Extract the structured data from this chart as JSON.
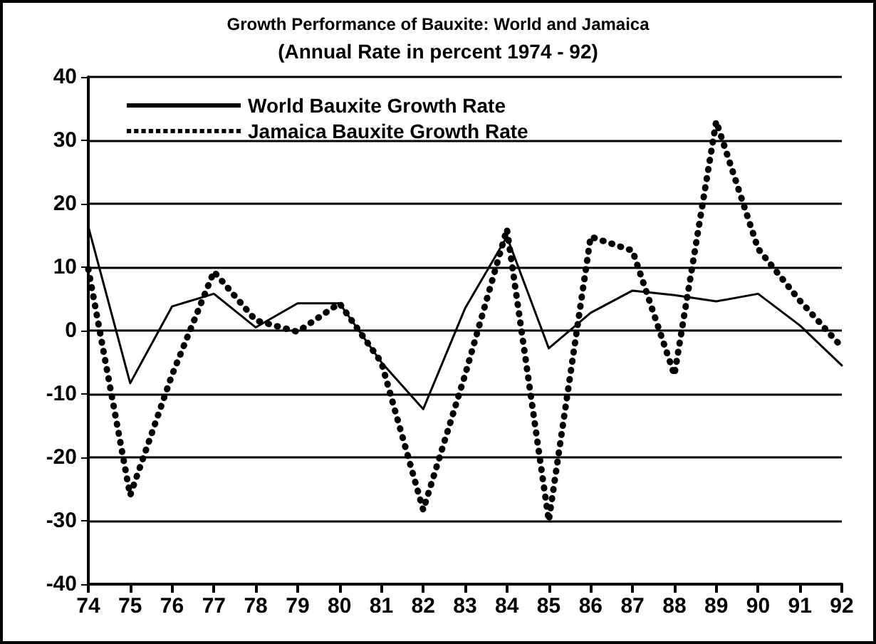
{
  "chart_data": {
    "type": "line",
    "title": "Growth Performance of Bauxite: World and Jamaica",
    "subtitle": "(Annual Rate in percent 1974 - 92)",
    "categories": [
      "74",
      "75",
      "76",
      "77",
      "78",
      "79",
      "80",
      "81",
      "82",
      "83",
      "84",
      "85",
      "86",
      "87",
      "88",
      "89",
      "90",
      "91",
      "92"
    ],
    "series": [
      {
        "name": "World Bauxite Growth Rate",
        "color": "#000000",
        "line_style": "solid",
        "values": [
          16.4,
          -8.3,
          3.8,
          5.8,
          0.5,
          4.3,
          4.3,
          -5,
          -12.4,
          3.5,
          14.8,
          -2.8,
          2.8,
          6.3,
          5.6,
          4.6,
          5.8,
          0.8,
          -5.5
        ]
      },
      {
        "name": "Jamaica Bauxite Growth Rate",
        "color": "#000000",
        "line_style": "dotted",
        "values": [
          9.7,
          -26,
          -7,
          9.3,
          1.6,
          -0.2,
          4.3,
          -5,
          -28.3,
          -7,
          16,
          -30,
          14.8,
          12.6,
          -7,
          33,
          12.9,
          4.7,
          -2.6
        ]
      }
    ],
    "ylim": [
      -40,
      40
    ],
    "yticks": [
      -40,
      -30,
      -20,
      -10,
      0,
      10,
      20,
      30,
      40
    ],
    "grid": "y",
    "legend": "top left",
    "marker": "none"
  }
}
